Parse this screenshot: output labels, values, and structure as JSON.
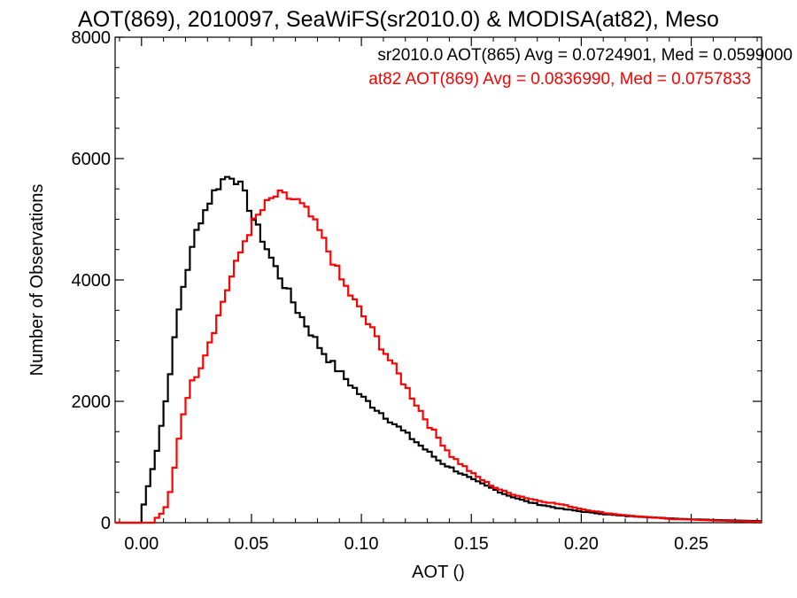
{
  "chart_data": {
    "type": "line",
    "title": "AOT(869), 2010097, SeaWiFS(sr2010.0) & MODISA(at82), Meso",
    "xlabel": "AOT ()",
    "ylabel": "Number of Observations",
    "xlim": [
      -0.012,
      0.282
    ],
    "ylim": [
      0,
      8000
    ],
    "xticks": [
      0.0,
      0.05,
      0.1,
      0.15,
      0.2,
      0.25
    ],
    "xtick_labels": [
      "0.00",
      "0.05",
      "0.10",
      "0.15",
      "0.20",
      "0.25"
    ],
    "yticks": [
      0,
      2000,
      4000,
      6000,
      8000
    ],
    "ytick_labels": [
      "0",
      "2000",
      "4000",
      "6000",
      "8000"
    ],
    "grid": false,
    "legend_placement": "top-right",
    "series": [
      {
        "name": "sr2010.0 AOT(865) Avg = 0.0724901, Med = 0.0599000",
        "color": "#000000",
        "step": 0.002,
        "x": [
          -0.002,
          0.0,
          0.002,
          0.004,
          0.006,
          0.008,
          0.01,
          0.012,
          0.014,
          0.016,
          0.018,
          0.02,
          0.022,
          0.024,
          0.026,
          0.028,
          0.03,
          0.032,
          0.034,
          0.036,
          0.038,
          0.04,
          0.042,
          0.044,
          0.046,
          0.048,
          0.05,
          0.055,
          0.06,
          0.065,
          0.07,
          0.075,
          0.08,
          0.085,
          0.09,
          0.095,
          0.1,
          0.105,
          0.11,
          0.115,
          0.12,
          0.125,
          0.13,
          0.135,
          0.14,
          0.145,
          0.15,
          0.155,
          0.16,
          0.165,
          0.17,
          0.175,
          0.18,
          0.19,
          0.2,
          0.21,
          0.22,
          0.23,
          0.24,
          0.25,
          0.26,
          0.27,
          0.282
        ],
        "y": [
          0,
          300,
          600,
          900,
          1200,
          1600,
          2000,
          2500,
          3000,
          3500,
          3900,
          4200,
          4500,
          4800,
          5000,
          5150,
          5300,
          5450,
          5550,
          5650,
          5700,
          5720,
          5650,
          5550,
          5400,
          5200,
          5000,
          4600,
          4200,
          3850,
          3500,
          3200,
          2900,
          2650,
          2450,
          2250,
          2050,
          1900,
          1750,
          1600,
          1450,
          1300,
          1150,
          1000,
          900,
          800,
          700,
          620,
          540,
          460,
          400,
          340,
          300,
          230,
          180,
          140,
          110,
          90,
          70,
          55,
          45,
          35,
          25
        ]
      },
      {
        "name": "at82 AOT(869) Avg = 0.0836990, Med = 0.0757833",
        "color": "#ff0000",
        "step": 0.002,
        "x": [
          -0.002,
          0.004,
          0.006,
          0.008,
          0.01,
          0.012,
          0.014,
          0.016,
          0.018,
          0.02,
          0.022,
          0.024,
          0.026,
          0.028,
          0.03,
          0.032,
          0.034,
          0.036,
          0.038,
          0.04,
          0.042,
          0.044,
          0.046,
          0.048,
          0.05,
          0.052,
          0.054,
          0.056,
          0.058,
          0.06,
          0.062,
          0.064,
          0.066,
          0.068,
          0.07,
          0.075,
          0.08,
          0.085,
          0.09,
          0.095,
          0.1,
          0.105,
          0.11,
          0.115,
          0.12,
          0.125,
          0.13,
          0.135,
          0.14,
          0.145,
          0.15,
          0.155,
          0.16,
          0.165,
          0.17,
          0.175,
          0.18,
          0.19,
          0.2,
          0.21,
          0.22,
          0.23,
          0.24,
          0.25,
          0.26,
          0.27,
          0.282
        ],
        "y": [
          0,
          0,
          80,
          150,
          250,
          500,
          900,
          1400,
          1800,
          2100,
          2300,
          2450,
          2600,
          2800,
          3000,
          3200,
          3400,
          3650,
          3850,
          4050,
          4250,
          4450,
          4650,
          4800,
          4950,
          5050,
          5150,
          5250,
          5320,
          5380,
          5400,
          5380,
          5350,
          5330,
          5300,
          5100,
          4800,
          4400,
          4000,
          3700,
          3400,
          3100,
          2800,
          2500,
          2200,
          1900,
          1600,
          1350,
          1100,
          950,
          800,
          680,
          580,
          500,
          450,
          400,
          360,
          300,
          220,
          160,
          120,
          90,
          60,
          50,
          35,
          25,
          15
        ]
      }
    ]
  }
}
